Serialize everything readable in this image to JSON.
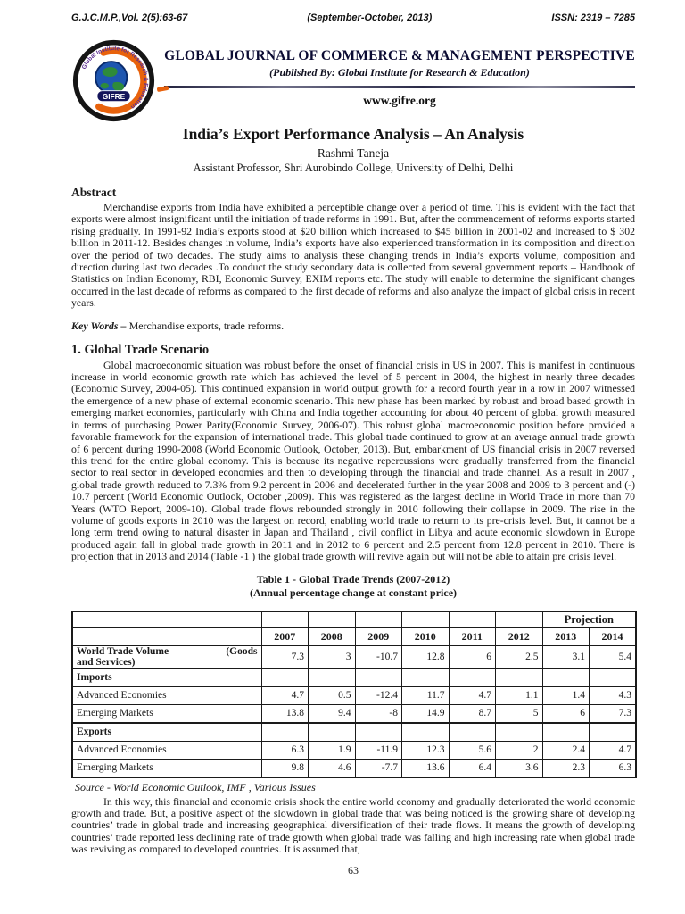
{
  "header": {
    "journal_ref": "G.J.C.M.P.,Vol. 2(5):63-67",
    "issue_date": "(September-October, 2013)",
    "issn": "ISSN: 2319 – 7285"
  },
  "masthead": {
    "journal_title": "GLOBAL JOURNAL OF COMMERCE & MANAGEMENT PERSPECTIVE",
    "publisher_line": "(Published By: Global Institute for Research & Education)",
    "website": "www.gifre.org",
    "logo_text": "GIFRE",
    "logo_ring_text": "Global Institute for Research & Education",
    "accent_orange": "#e8620c",
    "accent_navy": "#14145a",
    "accent_purple": "#5b2d91"
  },
  "article": {
    "title": "India’s Export Performance Analysis – An Analysis",
    "author": "Rashmi Taneja",
    "affiliation": "Assistant Professor, Shri Aurobindo College, University of Delhi, Delhi"
  },
  "abstract": {
    "heading": "Abstract",
    "text": "Merchandise exports from India have exhibited a perceptible change over a period of time. This is evident with the fact that exports were almost insignificant until the initiation of trade reforms in 1991. But, after the commencement of reforms exports started rising gradually. In 1991-92 India’s exports stood at $20 billion which increased to $45 billion in 2001-02 and increased to $ 302 billion in 2011-12. Besides changes in volume, India’s exports have also experienced transformation in its composition and direction over the period of two decades. The study aims to analysis these changing trends in India’s exports volume, composition and direction during last two decades .To conduct the study secondary data is collected from several government reports – Handbook of Statistics on Indian Economy, RBI, Economic Survey, EXIM reports etc. The study will enable to determine the significant changes occurred in the last decade of reforms as compared to the first decade of reforms and also analyze the impact of global crisis in recent years."
  },
  "keywords": {
    "label": "Key Words –",
    "text": " Merchandise exports, trade reforms."
  },
  "section1": {
    "heading": "1. Global Trade Scenario",
    "text": "Global macroeconomic situation was robust before the onset of financial crisis in US in 2007. This is manifest in continuous increase in world economic growth rate which has achieved the level of 5 percent in 2004, the highest in nearly three decades (Economic Survey, 2004-05). This continued expansion in world output growth for a record fourth year in a row in 2007 witnessed the emergence of a new phase of external economic scenario. This new phase has been marked by robust and broad based growth in emerging market economies, particularly with China and India together accounting for about 40 percent of global growth measured in terms of purchasing Power Parity(Economic Survey, 2006-07). This robust global macroeconomic position before provided a favorable framework for the expansion of international trade. This global trade continued to grow at an average annual trade growth of 6 percent during 1990-2008 (World Economic Outlook, October, 2013). But, embarkment of US financial crisis in 2007 reversed this trend for the entire global economy. This is because its negative repercussions were gradually transferred from the financial sector to real sector in developed economies and then to developing through the financial and trade channel. As a result in 2007 , global trade growth reduced to 7.3% from 9.2 percent in 2006 and decelerated further in the year 2008 and 2009 to 3 percent and (-) 10.7 percent (World Economic Outlook, October ,2009). This was registered as the largest decline in World Trade in more than 70 Years (WTO Report, 2009-10). Global trade flows rebounded strongly in 2010 following their collapse in 2009. The rise in the volume of goods exports in 2010 was the largest on record, enabling world trade to return to its pre-crisis level. But, it cannot be a long term trend owing to natural disaster in Japan and Thailand , civil conflict in Libya and acute economic slowdown in Europe produced again fall in global trade growth in 2011 and in 2012 to 6 percent and 2.5 percent from 12.8 percent in 2010. There is projection that in 2013 and 2014 (Table -1 ) the global trade growth will revive again but will not be able to attain pre crisis level."
  },
  "table": {
    "title": "Table 1 - Global Trade Trends (2007-2012)",
    "subtitle": "(Annual percentage change at constant price)",
    "projection_label": "Projection",
    "years": [
      "2007",
      "2008",
      "2009",
      "2010",
      "2011",
      "2012",
      "2013",
      "2014"
    ],
    "rows": [
      {
        "label": "World Trade Volume (Goods and Services)",
        "split": [
          "World Trade Volume",
          "(Goods",
          "and Services)"
        ],
        "bold": true,
        "sep": false,
        "values": [
          "7.3",
          "3",
          "-10.7",
          "12.8",
          "6",
          "2.5",
          "3.1",
          "5.4"
        ]
      },
      {
        "label": "Imports",
        "bold": true,
        "sep": true,
        "values": [
          "",
          "",
          "",
          "",
          "",
          "",
          "",
          ""
        ]
      },
      {
        "label": "Advanced Economies",
        "bold": false,
        "sep": false,
        "values": [
          "4.7",
          "0.5",
          "-12.4",
          "11.7",
          "4.7",
          "1.1",
          "1.4",
          "4.3"
        ]
      },
      {
        "label": "Emerging Markets",
        "bold": false,
        "sep": false,
        "values": [
          "13.8",
          "9.4",
          "-8",
          "14.9",
          "8.7",
          "5",
          "6",
          "7.3"
        ]
      },
      {
        "label": "Exports",
        "bold": true,
        "sep": true,
        "values": [
          "",
          "",
          "",
          "",
          "",
          "",
          "",
          ""
        ]
      },
      {
        "label": "Advanced Economies",
        "bold": false,
        "sep": false,
        "values": [
          "6.3",
          "1.9",
          "-11.9",
          "12.3",
          "5.6",
          "2",
          "2.4",
          "4.7"
        ]
      },
      {
        "label": "Emerging Markets",
        "bold": false,
        "sep": false,
        "values": [
          "9.8",
          "4.6",
          "-7.7",
          "13.6",
          "6.4",
          "3.6",
          "2.3",
          "6.3"
        ]
      }
    ],
    "source": "Source - World Economic Outlook, IMF , Various Issues"
  },
  "closing_paragraph": "In this way, this financial and economic crisis shook the entire world economy and gradually deteriorated the world economic growth and trade. But, a positive aspect of the slowdown in global trade that was being noticed is the growing share of developing countries’ trade in global trade and increasing geographical diversification of their trade flows. It means the growth of developing countries’ trade reported less declining rate of trade growth when global trade was falling and high increasing rate when global trade was reviving as compared to developed countries. It is assumed that,",
  "page_number": "63"
}
